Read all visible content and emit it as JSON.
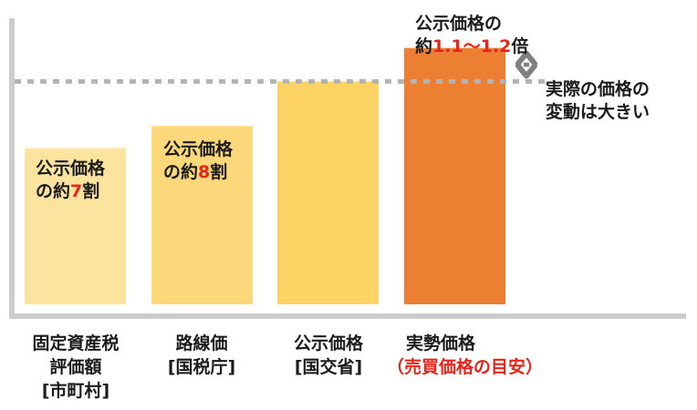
{
  "chart_data": {
    "type": "bar",
    "categories": [
      [
        "固定資産税",
        "評価額",
        "[市町村]"
      ],
      [
        "路線価",
        "[国税庁]"
      ],
      [
        "公示価格",
        "[国交省]"
      ],
      [
        "実勢価格",
        "（売買価格の目安）"
      ]
    ],
    "values": [
      70,
      80,
      100,
      115
    ],
    "ylim": [
      0,
      112
    ],
    "reference_line": 100,
    "colors": [
      "#fde49e",
      "#fdd87a",
      "#fdd366",
      "#ed7f33"
    ],
    "axis_color": "#cccccc",
    "arrow_color": "#7f7f7f",
    "annotations": {
      "bar1": {
        "line1": "公示価格",
        "line2_pre": "の約",
        "line2_num": "7",
        "line2_post": "割"
      },
      "bar2": {
        "line1": "公示価格",
        "line2_pre": "の約",
        "line2_num": "8",
        "line2_post": "割"
      },
      "bar4": {
        "line1": "公示価格の",
        "line2_pre": "約",
        "line2_num": "1.1～1.2",
        "line2_post": "倍"
      },
      "variation": {
        "line1": "実際の価格の",
        "line2": "変動は大きい"
      }
    }
  }
}
